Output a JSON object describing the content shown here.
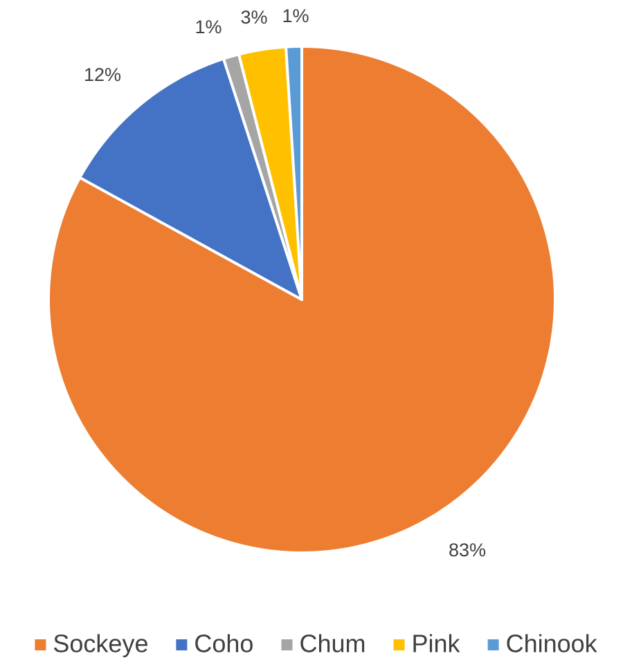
{
  "chart_data": {
    "type": "pie",
    "title": "",
    "legend_position": "bottom",
    "categories": [
      "Sockeye",
      "Coho",
      "Chum",
      "Pink",
      "Chinook"
    ],
    "values": [
      83,
      12,
      1,
      3,
      1
    ],
    "data_labels": [
      "83%",
      "12%",
      "1%",
      "3%",
      "1%"
    ],
    "colors": [
      "#ED7D31",
      "#4472C4",
      "#A5A5A5",
      "#FFC000",
      "#5B9BD5"
    ],
    "start_angle_deg": 0,
    "direction": "clockwise"
  }
}
